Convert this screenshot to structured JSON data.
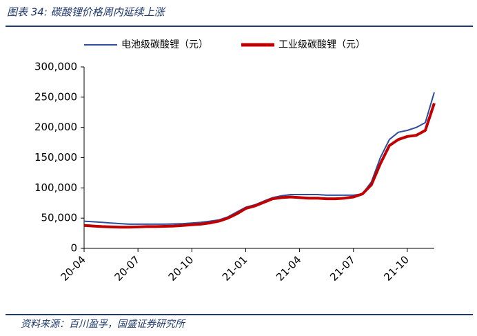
{
  "chart_data": {
    "type": "line",
    "title": "图表 34:  碳酸锂价格周内延续上涨",
    "source": "资料来源：百川盈孚，国盛证券研究所",
    "categories": [
      "20-04",
      null,
      null,
      null,
      null,
      null,
      "20-07",
      null,
      null,
      null,
      null,
      null,
      "20-10",
      null,
      null,
      null,
      null,
      null,
      "21-01",
      null,
      null,
      null,
      null,
      null,
      "21-04",
      null,
      null,
      null,
      null,
      null,
      "21-07",
      null,
      null,
      null,
      null,
      null,
      "21-10",
      null,
      null,
      null
    ],
    "series": [
      {
        "name": "电池级碳酸锂（元）",
        "color": "#2e4d9b",
        "values": [
          45000,
          44000,
          43000,
          42000,
          41000,
          40000,
          40000,
          40000,
          40000,
          40000,
          40500,
          41000,
          42000,
          43000,
          45000,
          47000,
          52000,
          60000,
          68000,
          72000,
          78000,
          84000,
          87000,
          89000,
          89000,
          89000,
          89000,
          88000,
          88000,
          88000,
          88000,
          90000,
          110000,
          150000,
          180000,
          192000,
          195000,
          200000,
          208000,
          258000
        ]
      },
      {
        "name": "工业级碳酸锂（元）",
        "color": "#c00000",
        "values": [
          38000,
          37000,
          36000,
          35500,
          35000,
          35000,
          35500,
          36000,
          36000,
          36500,
          37000,
          38000,
          39000,
          40000,
          42000,
          45000,
          50000,
          57000,
          66000,
          70000,
          76000,
          82000,
          84000,
          85000,
          84000,
          83000,
          83000,
          82000,
          82000,
          83000,
          85000,
          90000,
          105000,
          140000,
          170000,
          180000,
          185000,
          187000,
          195000,
          240000
        ]
      }
    ],
    "ylim": [
      0,
      300000
    ],
    "yticks": [
      0,
      {
        "value": 50000,
        "label": "50,000"
      },
      {
        "value": 100000,
        "label": "100,000"
      },
      {
        "value": 150000,
        "label": "150,000"
      },
      {
        "value": 200000,
        "label": "200,000"
      },
      {
        "value": 250000,
        "label": "250,000"
      },
      {
        "value": 300000,
        "label": "300,000"
      }
    ],
    "legend": "top"
  }
}
